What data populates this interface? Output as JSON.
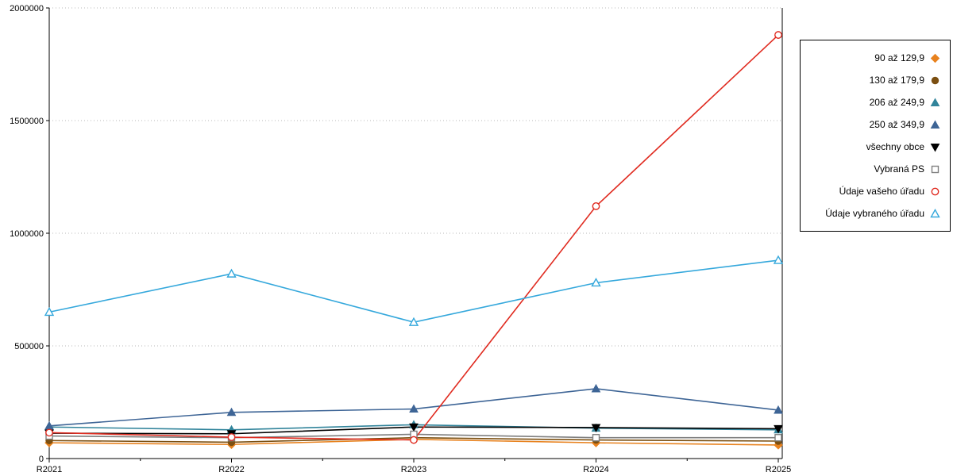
{
  "chart_data": {
    "type": "line",
    "title": "",
    "xlabel": "",
    "ylabel": "",
    "x": [
      "R2021",
      "R2022",
      "R2023",
      "R2024",
      "R2025"
    ],
    "ylim": [
      0,
      2000000
    ],
    "yticks": [
      0,
      500000,
      1000000,
      1500000,
      2000000
    ],
    "grid": "horizontal-dotted",
    "legend_position": "right-outside-boxed",
    "series": [
      {
        "name": "90 až 129,9",
        "color": "#E8821E",
        "marker": "diamond",
        "filled": true,
        "values": [
          70000,
          62500,
          85000,
          70000,
          60000
        ]
      },
      {
        "name": "130 až 179,9",
        "color": "#7B4F11",
        "marker": "circle",
        "filled": true,
        "values": [
          80000,
          72500,
          92500,
          82500,
          77500
        ]
      },
      {
        "name": "206 až 249,9",
        "color": "#31849B",
        "marker": "triangle-up",
        "filled": true,
        "values": [
          140000,
          127500,
          150000,
          135000,
          127500
        ]
      },
      {
        "name": "250 až 349,9",
        "color": "#3E6596",
        "marker": "triangle-up",
        "filled": true,
        "values": [
          145000,
          205000,
          220000,
          310000,
          215000
        ]
      },
      {
        "name": "všechny obce",
        "color": "#000000",
        "marker": "triangle-down",
        "filled": true,
        "values": [
          112500,
          110000,
          140000,
          137500,
          132500
        ]
      },
      {
        "name": "Vybraná PS",
        "color": "#7F7F7F",
        "marker": "square",
        "filled": false,
        "values": [
          100000,
          92500,
          107500,
          92500,
          92500
        ]
      },
      {
        "name": "Údaje vašeho úřadu",
        "color": "#E02B20",
        "marker": "circle",
        "filled": false,
        "values": [
          115000,
          95000,
          82500,
          1120000,
          1880000
        ]
      },
      {
        "name": "Údaje vybraného úřadu",
        "color": "#35A8DC",
        "marker": "triangle-up",
        "filled": false,
        "values": [
          650000,
          820000,
          605000,
          780000,
          880000
        ]
      }
    ]
  }
}
